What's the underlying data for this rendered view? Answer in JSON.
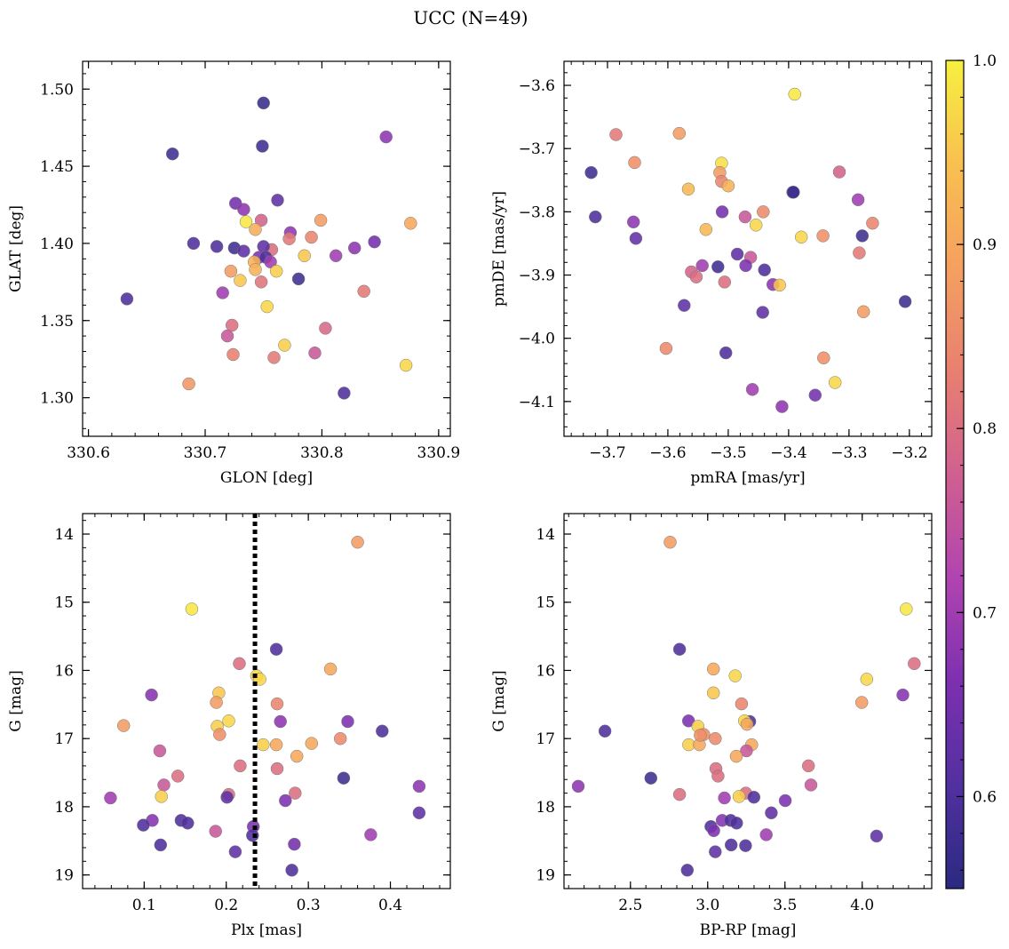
{
  "figure": {
    "suptitle": "UCC (N=49)"
  },
  "colorbar": {
    "range": [
      0.55,
      1.0
    ],
    "ticks": [
      0.6,
      0.7,
      0.8,
      0.9,
      1.0
    ],
    "tick_labels": [
      "0.6",
      "0.7",
      "0.8",
      "0.9",
      "1.0"
    ],
    "colormap": "plasma",
    "stops": [
      "#2a2a80",
      "#5230a0",
      "#7d30b0",
      "#b044b0",
      "#d06090",
      "#e88070",
      "#f5a060",
      "#f8c050",
      "#f7f040"
    ]
  },
  "chart_data": [
    {
      "type": "scatter",
      "xlabel": "GLON [deg]",
      "ylabel": "GLAT [deg]",
      "xlim": [
        330.595,
        330.91
      ],
      "ylim": [
        1.275,
        1.518
      ],
      "xticks": [
        330.6,
        330.7,
        330.8,
        330.9
      ],
      "xtick_labels": [
        "330.6",
        "330.7",
        "330.8",
        "330.9"
      ],
      "yticks": [
        1.3,
        1.35,
        1.4,
        1.45,
        1.5
      ],
      "ytick_labels": [
        "1.30",
        "1.35",
        "1.40",
        "1.45",
        "1.50"
      ],
      "points": [
        [
          330.75,
          1.491,
          0.57
        ],
        [
          330.749,
          1.463,
          0.58
        ],
        [
          330.672,
          1.458,
          0.58
        ],
        [
          330.855,
          1.469,
          0.68
        ],
        [
          330.762,
          1.428,
          0.62
        ],
        [
          330.726,
          1.426,
          0.65
        ],
        [
          330.733,
          1.422,
          0.68
        ],
        [
          330.748,
          1.415,
          0.78
        ],
        [
          330.735,
          1.414,
          0.99
        ],
        [
          330.799,
          1.415,
          0.88
        ],
        [
          330.773,
          1.407,
          0.68
        ],
        [
          330.743,
          1.409,
          0.91
        ],
        [
          330.757,
          1.396,
          0.8
        ],
        [
          330.772,
          1.403,
          0.82
        ],
        [
          330.791,
          1.404,
          0.84
        ],
        [
          330.845,
          1.401,
          0.65
        ],
        [
          330.69,
          1.4,
          0.6
        ],
        [
          330.71,
          1.398,
          0.6
        ],
        [
          330.725,
          1.397,
          0.58
        ],
        [
          330.733,
          1.395,
          0.62
        ],
        [
          330.75,
          1.398,
          0.62
        ],
        [
          330.828,
          1.397,
          0.68
        ],
        [
          330.746,
          1.391,
          0.66
        ],
        [
          330.752,
          1.391,
          0.6
        ],
        [
          330.756,
          1.388,
          0.7
        ],
        [
          330.742,
          1.388,
          0.92
        ],
        [
          330.785,
          1.392,
          0.95
        ],
        [
          330.812,
          1.392,
          0.7
        ],
        [
          330.722,
          1.382,
          0.88
        ],
        [
          330.743,
          1.383,
          0.92
        ],
        [
          330.761,
          1.382,
          0.96
        ],
        [
          330.78,
          1.377,
          0.58
        ],
        [
          330.73,
          1.376,
          0.95
        ],
        [
          330.748,
          1.375,
          0.81
        ],
        [
          330.715,
          1.368,
          0.7
        ],
        [
          330.836,
          1.369,
          0.82
        ],
        [
          330.633,
          1.364,
          0.6
        ],
        [
          330.753,
          1.359,
          0.97
        ],
        [
          330.723,
          1.347,
          0.8
        ],
        [
          330.719,
          1.34,
          0.76
        ],
        [
          330.803,
          1.345,
          0.79
        ],
        [
          330.768,
          1.334,
          0.96
        ],
        [
          330.724,
          1.328,
          0.83
        ],
        [
          330.759,
          1.326,
          0.82
        ],
        [
          330.794,
          1.329,
          0.76
        ],
        [
          330.872,
          1.321,
          0.97
        ],
        [
          330.686,
          1.309,
          0.87
        ],
        [
          330.819,
          1.303,
          0.6
        ],
        [
          330.876,
          1.413,
          0.9
        ]
      ]
    },
    {
      "type": "scatter",
      "xlabel": "pmRA [mas/yr]",
      "ylabel": "pmDE [mas/yr]",
      "xlim": [
        -3.772,
        -3.163
      ],
      "ylim": [
        -4.155,
        -3.562
      ],
      "xticks": [
        -3.7,
        -3.6,
        -3.5,
        -3.4,
        -3.3,
        -3.2
      ],
      "xtick_labels": [
        "−3.7",
        "−3.6",
        "−3.5",
        "−3.4",
        "−3.3",
        "−3.2"
      ],
      "yticks": [
        -4.1,
        -4.0,
        -3.9,
        -3.8,
        -3.7,
        -3.6
      ],
      "ytick_labels": [
        "−4.1",
        "−4.0",
        "−3.9",
        "−3.8",
        "−3.7",
        "−3.6"
      ],
      "points": [
        [
          -3.39,
          -3.614,
          0.99
        ],
        [
          -3.686,
          -3.678,
          0.82
        ],
        [
          -3.581,
          -3.676,
          0.88
        ],
        [
          -3.511,
          -3.723,
          0.98
        ],
        [
          -3.655,
          -3.722,
          0.86
        ],
        [
          -3.727,
          -3.738,
          0.58
        ],
        [
          -3.514,
          -3.738,
          0.88
        ],
        [
          -3.316,
          -3.737,
          0.78
        ],
        [
          -3.511,
          -3.752,
          0.84
        ],
        [
          -3.5,
          -3.759,
          0.92
        ],
        [
          -3.566,
          -3.764,
          0.93
        ],
        [
          -3.393,
          -3.769,
          0.57
        ],
        [
          -3.392,
          -3.769,
          0.58
        ],
        [
          -3.285,
          -3.781,
          0.7
        ],
        [
          -3.51,
          -3.8,
          0.65
        ],
        [
          -3.442,
          -3.8,
          0.85
        ],
        [
          -3.472,
          -3.808,
          0.76
        ],
        [
          -3.72,
          -3.808,
          0.6
        ],
        [
          -3.657,
          -3.816,
          0.68
        ],
        [
          -3.261,
          -3.818,
          0.84
        ],
        [
          -3.454,
          -3.821,
          0.97
        ],
        [
          -3.537,
          -3.828,
          0.93
        ],
        [
          -3.653,
          -3.842,
          0.63
        ],
        [
          -3.379,
          -3.84,
          0.97
        ],
        [
          -3.343,
          -3.838,
          0.86
        ],
        [
          -3.278,
          -3.838,
          0.58
        ],
        [
          -3.485,
          -3.867,
          0.62
        ],
        [
          -3.463,
          -3.872,
          0.76
        ],
        [
          -3.283,
          -3.865,
          0.82
        ],
        [
          -3.543,
          -3.885,
          0.7
        ],
        [
          -3.471,
          -3.885,
          0.66
        ],
        [
          -3.517,
          -3.887,
          0.58
        ],
        [
          -3.44,
          -3.892,
          0.6
        ],
        [
          -3.561,
          -3.895,
          0.78
        ],
        [
          -3.553,
          -3.903,
          0.8
        ],
        [
          -3.506,
          -3.911,
          0.8
        ],
        [
          -3.426,
          -3.915,
          0.68
        ],
        [
          -3.415,
          -3.916,
          0.95
        ],
        [
          -3.573,
          -3.948,
          0.62
        ],
        [
          -3.443,
          -3.959,
          0.62
        ],
        [
          -3.276,
          -3.958,
          0.88
        ],
        [
          -3.207,
          -3.942,
          0.58
        ],
        [
          -3.603,
          -4.016,
          0.85
        ],
        [
          -3.504,
          -4.023,
          0.6
        ],
        [
          -3.342,
          -4.031,
          0.86
        ],
        [
          -3.323,
          -4.07,
          0.97
        ],
        [
          -3.46,
          -4.081,
          0.7
        ],
        [
          -3.356,
          -4.09,
          0.65
        ],
        [
          -3.411,
          -4.108,
          0.68
        ]
      ]
    },
    {
      "type": "scatter",
      "xlabel": "Plx [mas]",
      "ylabel": "G [mag]",
      "xlim": [
        0.025,
        0.473
      ],
      "ylim": [
        19.2,
        13.7
      ],
      "xticks": [
        0.1,
        0.2,
        0.3,
        0.4
      ],
      "xtick_labels": [
        "0.1",
        "0.2",
        "0.3",
        "0.4"
      ],
      "yticks": [
        14,
        15,
        16,
        17,
        18,
        19
      ],
      "ytick_labels": [
        "14",
        "15",
        "16",
        "17",
        "18",
        "19"
      ],
      "vline": 0.235,
      "points": [
        [
          0.36,
          14.12,
          0.88
        ],
        [
          0.158,
          15.1,
          0.99
        ],
        [
          0.261,
          15.69,
          0.6
        ],
        [
          0.216,
          15.9,
          0.8
        ],
        [
          0.327,
          15.98,
          0.9
        ],
        [
          0.237,
          16.08,
          0.97
        ],
        [
          0.241,
          16.13,
          0.97
        ],
        [
          0.191,
          16.33,
          0.95
        ],
        [
          0.109,
          16.36,
          0.67
        ],
        [
          0.188,
          16.47,
          0.88
        ],
        [
          0.262,
          16.49,
          0.84
        ],
        [
          0.203,
          16.74,
          0.97
        ],
        [
          0.266,
          16.75,
          0.68
        ],
        [
          0.348,
          16.75,
          0.66
        ],
        [
          0.075,
          16.81,
          0.88
        ],
        [
          0.189,
          16.82,
          0.96
        ],
        [
          0.39,
          16.89,
          0.6
        ],
        [
          0.192,
          16.94,
          0.86
        ],
        [
          0.339,
          17.0,
          0.85
        ],
        [
          0.245,
          17.09,
          0.96
        ],
        [
          0.261,
          17.09,
          0.9
        ],
        [
          0.304,
          17.07,
          0.9
        ],
        [
          0.119,
          17.18,
          0.76
        ],
        [
          0.286,
          17.26,
          0.9
        ],
        [
          0.217,
          17.4,
          0.8
        ],
        [
          0.262,
          17.44,
          0.8
        ],
        [
          0.141,
          17.55,
          0.8
        ],
        [
          0.343,
          17.58,
          0.58
        ],
        [
          0.124,
          17.68,
          0.76
        ],
        [
          0.435,
          17.7,
          0.68
        ],
        [
          0.284,
          17.8,
          0.8
        ],
        [
          0.203,
          17.82,
          0.8
        ],
        [
          0.201,
          17.86,
          0.62
        ],
        [
          0.121,
          17.85,
          0.96
        ],
        [
          0.059,
          17.87,
          0.7
        ],
        [
          0.272,
          17.91,
          0.66
        ],
        [
          0.11,
          18.2,
          0.67
        ],
        [
          0.145,
          18.2,
          0.6
        ],
        [
          0.153,
          18.24,
          0.6
        ],
        [
          0.099,
          18.27,
          0.6
        ],
        [
          0.233,
          18.29,
          0.66
        ],
        [
          0.187,
          18.36,
          0.76
        ],
        [
          0.376,
          18.41,
          0.7
        ],
        [
          0.232,
          18.42,
          0.6
        ],
        [
          0.435,
          18.09,
          0.62
        ],
        [
          0.12,
          18.56,
          0.6
        ],
        [
          0.283,
          18.55,
          0.65
        ],
        [
          0.211,
          18.66,
          0.62
        ],
        [
          0.28,
          18.93,
          0.6
        ]
      ]
    },
    {
      "type": "scatter",
      "xlabel": "BP-RP [mag]",
      "ylabel": "G [mag]",
      "xlim": [
        2.07,
        4.45
      ],
      "ylim": [
        19.2,
        13.7
      ],
      "xticks": [
        2.5,
        3.0,
        3.5,
        4.0
      ],
      "xtick_labels": [
        "2.5",
        "3.0",
        "3.5",
        "4.0"
      ],
      "yticks": [
        14,
        15,
        16,
        17,
        18,
        19
      ],
      "ytick_labels": [
        "14",
        "15",
        "16",
        "17",
        "18",
        "19"
      ],
      "points": [
        [
          2.757,
          14.12,
          0.88
        ],
        [
          4.285,
          15.1,
          0.99
        ],
        [
          2.818,
          15.69,
          0.6
        ],
        [
          4.337,
          15.9,
          0.8
        ],
        [
          3.037,
          15.98,
          0.9
        ],
        [
          3.178,
          16.08,
          0.97
        ],
        [
          4.029,
          16.13,
          0.97
        ],
        [
          3.037,
          16.33,
          0.95
        ],
        [
          4.263,
          16.36,
          0.67
        ],
        [
          3.997,
          16.47,
          0.88
        ],
        [
          3.219,
          16.49,
          0.84
        ],
        [
          2.876,
          16.74,
          0.66
        ],
        [
          3.272,
          16.75,
          0.6
        ],
        [
          3.238,
          16.74,
          0.97
        ],
        [
          2.937,
          16.82,
          0.96
        ],
        [
          3.254,
          16.79,
          0.9
        ],
        [
          2.335,
          16.89,
          0.6
        ],
        [
          2.974,
          16.94,
          0.86
        ],
        [
          3.049,
          17.0,
          0.85
        ],
        [
          2.877,
          17.09,
          0.96
        ],
        [
          2.946,
          17.09,
          0.9
        ],
        [
          3.285,
          17.09,
          0.9
        ],
        [
          3.251,
          17.18,
          0.76
        ],
        [
          3.185,
          17.26,
          0.9
        ],
        [
          3.652,
          17.4,
          0.8
        ],
        [
          3.053,
          17.44,
          0.8
        ],
        [
          3.067,
          17.55,
          0.8
        ],
        [
          2.632,
          17.58,
          0.58
        ],
        [
          3.668,
          17.68,
          0.76
        ],
        [
          2.162,
          17.7,
          0.68
        ],
        [
          3.247,
          17.8,
          0.8
        ],
        [
          2.818,
          17.82,
          0.8
        ],
        [
          3.299,
          17.86,
          0.6
        ],
        [
          3.203,
          17.85,
          0.96
        ],
        [
          3.108,
          17.87,
          0.7
        ],
        [
          3.502,
          17.91,
          0.66
        ],
        [
          3.094,
          18.2,
          0.67
        ],
        [
          3.149,
          18.2,
          0.6
        ],
        [
          3.187,
          18.24,
          0.6
        ],
        [
          3.021,
          18.29,
          0.6
        ],
        [
          3.039,
          18.35,
          0.66
        ],
        [
          3.379,
          18.41,
          0.7
        ],
        [
          4.093,
          18.43,
          0.62
        ],
        [
          3.412,
          18.09,
          0.62
        ],
        [
          3.152,
          18.56,
          0.6
        ],
        [
          3.245,
          18.57,
          0.6
        ],
        [
          3.049,
          18.66,
          0.62
        ],
        [
          2.868,
          18.93,
          0.6
        ],
        [
          2.952,
          16.95,
          0.86
        ]
      ]
    }
  ]
}
